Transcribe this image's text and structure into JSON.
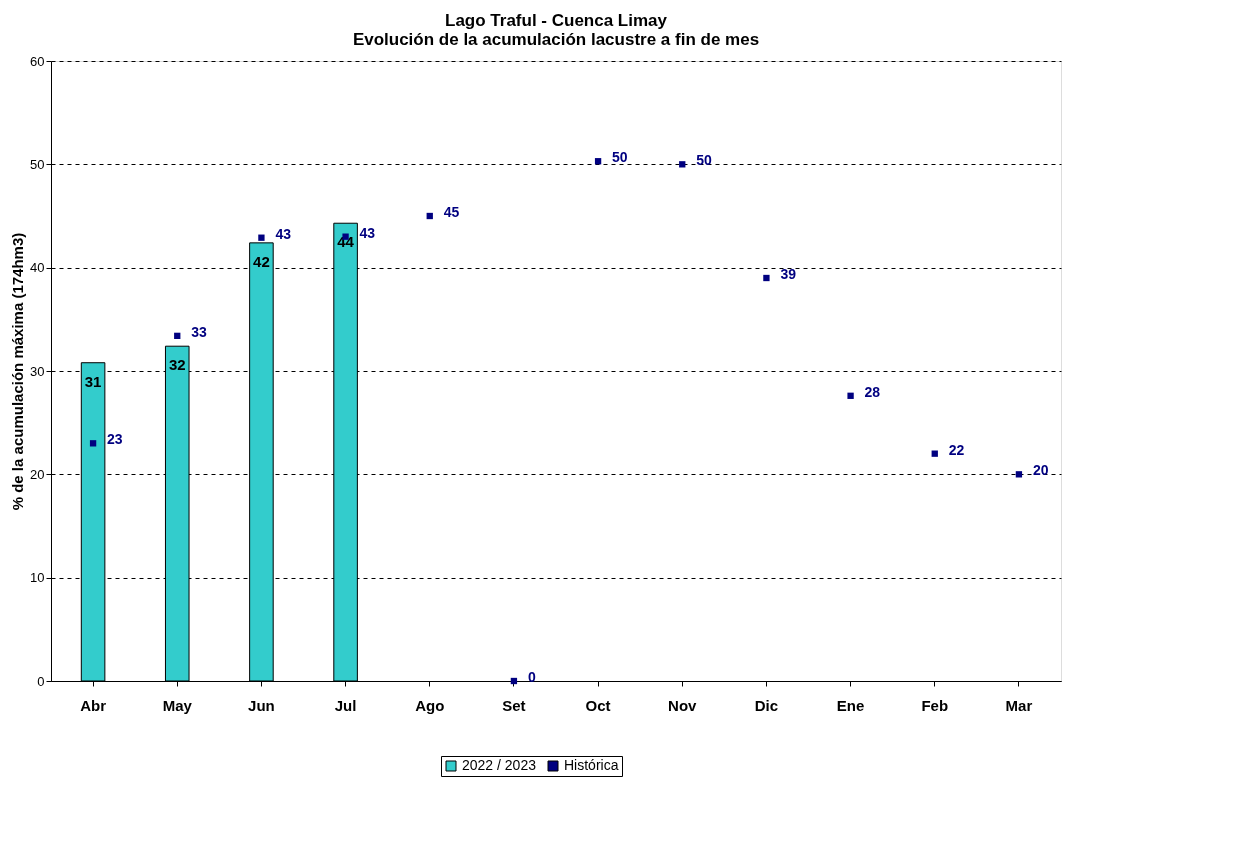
{
  "chart_data": {
    "type": "bar",
    "title": [
      "Lago Traful - Cuenca Limay",
      "Evolución de la acumulación lacustre a fin de mes"
    ],
    "ylabel": "% de la acumulación máxima (174hm3)",
    "categories": [
      "Abr",
      "May",
      "Jun",
      "Jul",
      "Ago",
      "Set",
      "Oct",
      "Nov",
      "Dic",
      "Ene",
      "Feb",
      "Mar"
    ],
    "series": [
      {
        "name": "2022 / 2023",
        "color": "#33cccc",
        "values": [
          30.8,
          32.4,
          42.4,
          44.3,
          null,
          null,
          null,
          null,
          null,
          null,
          null,
          null
        ],
        "value_labels": [
          "31",
          "32",
          "42",
          "44",
          null,
          null,
          null,
          null,
          null,
          null,
          null,
          null
        ]
      },
      {
        "name": "Histórica",
        "type": "scatter",
        "marker": "square",
        "color": "#000080",
        "values": [
          23,
          33.4,
          42.9,
          43,
          45,
          0,
          50.3,
          50,
          39,
          27.6,
          22,
          20
        ],
        "value_labels": [
          "23",
          "33",
          "43",
          "43",
          "45",
          "0",
          "50",
          "50",
          "39",
          "28",
          "22",
          "20"
        ]
      }
    ],
    "ylim": [
      0,
      60
    ],
    "yticks": [
      0,
      10,
      20,
      30,
      40,
      50,
      60
    ],
    "grid": "y",
    "legend": "bottom"
  }
}
